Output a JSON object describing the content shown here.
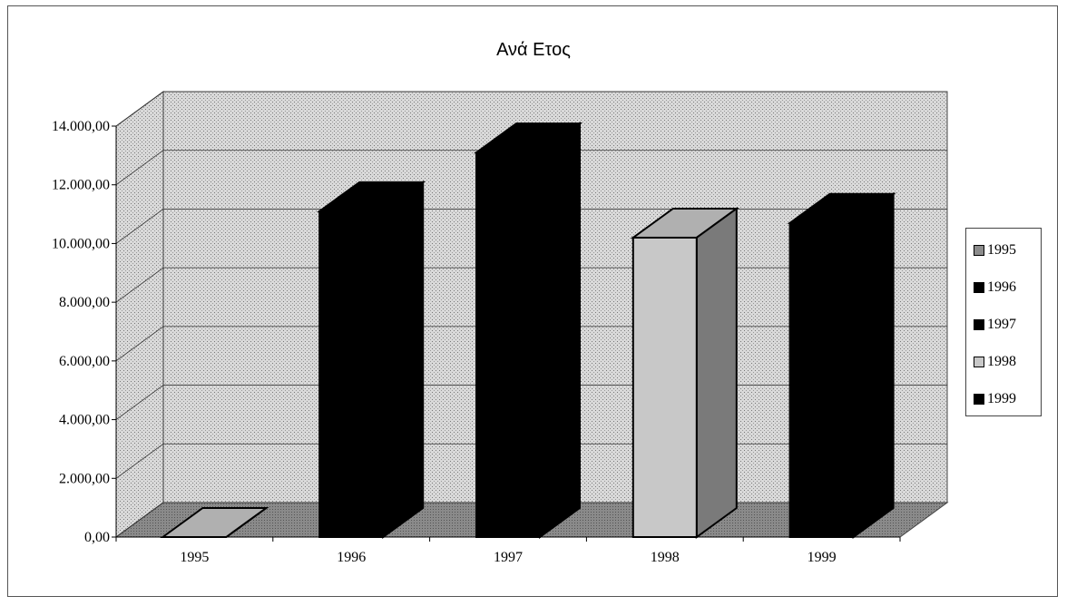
{
  "chart_data": {
    "type": "bar",
    "title": "Ανά Ετος",
    "categories": [
      "1995",
      "1996",
      "1997",
      "1998",
      "1999"
    ],
    "values": [
      0,
      11100,
      13100,
      10200,
      10700
    ],
    "ylim": [
      0,
      14000
    ],
    "yticks": [
      "0,00",
      "2.000,00",
      "4.000,00",
      "6.000,00",
      "8.000,00",
      "10.000,00",
      "12.000,00",
      "14.000,00"
    ],
    "ytick_values": [
      0,
      2000,
      4000,
      6000,
      8000,
      10000,
      12000,
      14000
    ],
    "grid": true,
    "legend_position": "right",
    "legend": [
      "1995",
      "1996",
      "1997",
      "1998",
      "1999"
    ],
    "series_colors": [
      "#8c8c8c",
      "#000000",
      "#000000",
      "#c8c8c8",
      "#000000"
    ],
    "wall_color": "#d4d4d4",
    "floor_color": "#8a8a8a"
  }
}
